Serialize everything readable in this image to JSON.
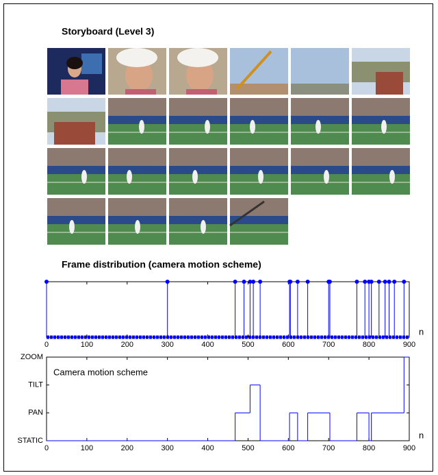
{
  "storyboard": {
    "title": "Storyboard (Level 3)"
  },
  "chart_data": [
    {
      "type": "stem",
      "title": "Frame distribution (camera motion scheme)",
      "x": [
        0,
        300,
        468,
        490,
        505,
        513,
        530,
        603,
        605,
        623,
        648,
        700,
        703,
        770,
        790,
        800,
        806,
        825,
        840,
        850,
        863,
        887
      ],
      "values": [
        1,
        1,
        1,
        1,
        1,
        1,
        1,
        1,
        1,
        1,
        1,
        1,
        1,
        1,
        1,
        1,
        1,
        1,
        1,
        1,
        1,
        1
      ],
      "color": "#0000ff",
      "xlim": [
        0,
        900
      ],
      "ylim": [
        0,
        1
      ],
      "xticks": [
        0,
        100,
        200,
        300,
        400,
        500,
        600,
        700,
        800,
        900
      ],
      "xlabel": "n"
    },
    {
      "type": "step",
      "annotation": "Camera motion scheme",
      "x": [
        0,
        468,
        505,
        530,
        603,
        623,
        648,
        703,
        770,
        800,
        806,
        887
      ],
      "values": [
        0,
        1,
        2,
        0,
        1,
        0,
        1,
        0,
        1,
        0,
        1,
        3
      ],
      "color": "#0000ff",
      "xlim": [
        0,
        900
      ],
      "ylim": [
        0,
        3
      ],
      "xticks": [
        0,
        100,
        200,
        300,
        400,
        500,
        600,
        700,
        800,
        900
      ],
      "yticks": [
        {
          "value": 0,
          "label": "STATIC"
        },
        {
          "value": 1,
          "label": "PAN"
        },
        {
          "value": 2,
          "label": "TILT"
        },
        {
          "value": 3,
          "label": "ZOOM"
        }
      ],
      "xlabel": "n"
    }
  ]
}
